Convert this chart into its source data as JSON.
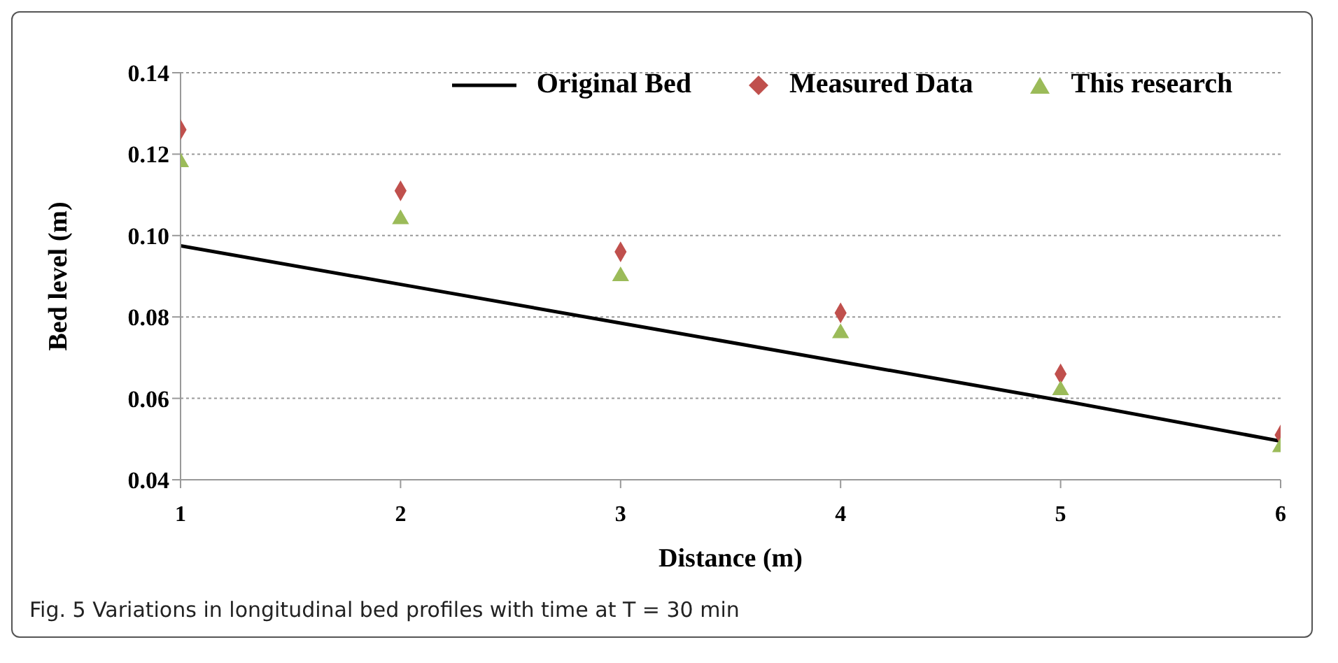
{
  "chart_data": {
    "type": "scatter",
    "xlabel": "Distance (m)",
    "ylabel": "Bed level (m)",
    "x": [
      1,
      2,
      3,
      4,
      5,
      6
    ],
    "series": [
      {
        "name": "Original Bed",
        "type": "line",
        "color": "#000000",
        "marker": "none",
        "line_style": "solid",
        "values": [
          0.0975,
          0.088,
          0.0785,
          0.069,
          0.0595,
          0.0495
        ]
      },
      {
        "name": "Measured Data",
        "color": "#c0504d",
        "marker": "diamond",
        "values": [
          0.126,
          0.111,
          0.096,
          0.081,
          0.066,
          0.051
        ]
      },
      {
        "name": "This research",
        "color": "#9bbb59",
        "marker": "triangle",
        "values": [
          0.118,
          0.104,
          0.09,
          0.076,
          0.062,
          0.048
        ]
      }
    ],
    "xlim": [
      1,
      6
    ],
    "xticks": [
      1,
      2,
      3,
      4,
      5,
      6
    ],
    "ylim": [
      0.04,
      0.14
    ],
    "yticks": [
      {
        "value": 0.04,
        "label": "0.04"
      },
      {
        "value": 0.06,
        "label": "0.06"
      },
      {
        "value": 0.08,
        "label": "0.08"
      },
      {
        "value": 0.1,
        "label": "0.10"
      },
      {
        "value": 0.12,
        "label": "0.12"
      },
      {
        "value": 0.14,
        "label": "0.14"
      }
    ],
    "grid": "y",
    "legend": "top",
    "annotations": [
      "Fig. 5  Variations in longitudinal bed profiles with time at T = 30 min"
    ]
  }
}
